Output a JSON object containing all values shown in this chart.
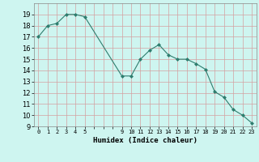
{
  "x": [
    0,
    1,
    2,
    3,
    4,
    5,
    9,
    10,
    11,
    12,
    13,
    14,
    15,
    16,
    17,
    18,
    19,
    20,
    21,
    22,
    23
  ],
  "y": [
    17,
    18,
    18.2,
    19,
    19,
    18.8,
    13.5,
    13.5,
    15,
    15.8,
    16.3,
    15.4,
    15,
    15,
    14.6,
    14.1,
    12.1,
    11.6,
    10.5,
    10,
    9.3
  ],
  "line_color": "#2e7d6e",
  "marker": "D",
  "marker_size": 2,
  "bg_color": "#cef5f0",
  "grid_color_major": "#d4a0a0",
  "grid_color_minor": "#d4c8c8",
  "xlabel": "Humidex (Indice chaleur)",
  "ylim": [
    9,
    20
  ],
  "xlim": [
    -0.5,
    23.5
  ],
  "yticks": [
    9,
    10,
    11,
    12,
    13,
    14,
    15,
    16,
    17,
    18,
    19
  ],
  "xtick_labels": [
    "0",
    "1",
    "2",
    "3",
    "4",
    "5",
    "",
    "",
    "",
    "9",
    "10",
    "11",
    "12",
    "13",
    "14",
    "15",
    "16",
    "17",
    "18",
    "19",
    "20",
    "21",
    "22",
    "23"
  ],
  "xtick_positions": [
    0,
    1,
    2,
    3,
    4,
    5,
    6,
    7,
    8,
    9,
    10,
    11,
    12,
    13,
    14,
    15,
    16,
    17,
    18,
    19,
    20,
    21,
    22,
    23
  ],
  "xlabel_fontsize": 6.5,
  "ylabel_fontsize": 6,
  "xtick_fontsize": 5,
  "ytick_fontsize": 6
}
